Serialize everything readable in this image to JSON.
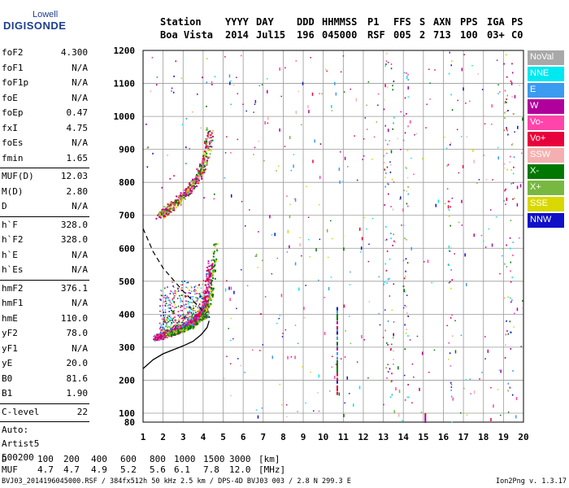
{
  "logo": {
    "line1": "Lowell",
    "line2": "DIGISONDE"
  },
  "header": {
    "labels": [
      "Station",
      "YYYY",
      "DAY",
      "DDD",
      "HHMMSS",
      "P1",
      "FFS",
      "S",
      "AXN",
      "PPS",
      "IGA",
      "PS"
    ],
    "values": [
      "Boa Vista",
      "2014",
      "Jul15",
      "196",
      "045000",
      "RSF",
      "005",
      "2",
      "713",
      "100",
      "03+",
      "C0"
    ]
  },
  "params_group1": [
    {
      "name": "foF2",
      "value": "4.300"
    },
    {
      "name": "foF1",
      "value": "N/A"
    },
    {
      "name": "foF1p",
      "value": "N/A"
    },
    {
      "name": "foE",
      "value": "N/A"
    },
    {
      "name": "foEp",
      "value": "0.47"
    },
    {
      "name": "fxI",
      "value": "4.75"
    },
    {
      "name": "foEs",
      "value": "N/A"
    },
    {
      "name": "fmin",
      "value": "1.65"
    }
  ],
  "params_group2": [
    {
      "name": "MUF(D)",
      "value": "12.03"
    },
    {
      "name": "M(D)",
      "value": "2.80"
    },
    {
      "name": "D",
      "value": "N/A"
    }
  ],
  "params_group3": [
    {
      "name": "h`F",
      "value": "328.0"
    },
    {
      "name": "h`F2",
      "value": "328.0"
    },
    {
      "name": "h`E",
      "value": "N/A"
    },
    {
      "name": "h`Es",
      "value": "N/A"
    }
  ],
  "params_group4": [
    {
      "name": "hmF2",
      "value": "376.1"
    },
    {
      "name": "hmF1",
      "value": "N/A"
    },
    {
      "name": "hmE",
      "value": "110.0"
    },
    {
      "name": "yF2",
      "value": "78.0"
    },
    {
      "name": "yF1",
      "value": "N/A"
    },
    {
      "name": "yE",
      "value": "20.0"
    },
    {
      "name": "B0",
      "value": "81.6"
    },
    {
      "name": "B1",
      "value": "1.90"
    }
  ],
  "clevel": {
    "name": "C-level",
    "value": "22"
  },
  "auto": {
    "line1": "Auto:",
    "line2": "Artist5",
    "line3": "500200"
  },
  "legend": [
    {
      "label": "NoVal",
      "color": "#a8a8a8"
    },
    {
      "label": "NNE",
      "color": "#00e8f0"
    },
    {
      "label": "E",
      "color": "#3a9bf0"
    },
    {
      "label": "W",
      "color": "#b0009c"
    },
    {
      "label": "Vo-",
      "color": "#ff44aa"
    },
    {
      "label": "Vo+",
      "color": "#e8003c"
    },
    {
      "label": "SSW",
      "color": "#f4b0b0"
    },
    {
      "label": "X-",
      "color": "#007800"
    },
    {
      "label": "X+",
      "color": "#78b840"
    },
    {
      "label": "SSE",
      "color": "#d8d800"
    },
    {
      "label": "NNW",
      "color": "#1010c8"
    }
  ],
  "footer": {
    "d_label": "D",
    "d_values": [
      "100",
      "200",
      "400",
      "600",
      "800",
      "1000",
      "1500",
      "3000"
    ],
    "d_unit": "[km]",
    "muf_label": "MUF",
    "muf_values": [
      "4.7",
      "4.7",
      "4.9",
      "5.2",
      "5.6",
      "6.1",
      "7.8",
      "12.0"
    ],
    "muf_unit": "[MHz]",
    "file_info": "BVJ03_2014196045000.RSF / 384fx512h 50 kHz 2.5 km / DPS-4D BVJ03 003 / 2.8 N 299.3 E",
    "version": "Ion2Png v. 1.3.17"
  },
  "chart_data": {
    "type": "scatter",
    "title": "",
    "xlabel": "",
    "ylabel": "",
    "xlim": [
      1,
      20
    ],
    "ylim": [
      80,
      1200
    ],
    "x_ticks": [
      1,
      2,
      3,
      4,
      5,
      6,
      7,
      8,
      9,
      10,
      11,
      12,
      13,
      14,
      15,
      16,
      17,
      18,
      19,
      20
    ],
    "y_ticks": [
      80,
      100,
      200,
      300,
      400,
      500,
      600,
      700,
      800,
      900,
      1000,
      1100,
      1200
    ],
    "grid": true,
    "traces": {
      "o_mode_F2": {
        "x": [
          1.6,
          2.0,
          2.5,
          3.0,
          3.5,
          3.9,
          4.15,
          4.3
        ],
        "y": [
          330,
          338,
          348,
          362,
          380,
          405,
          445,
          560
        ]
      },
      "multiple_hop": {
        "x": [
          1.8,
          2.2,
          2.7,
          3.2,
          3.7,
          4.1,
          4.3
        ],
        "y": [
          700,
          720,
          745,
          775,
          815,
          870,
          960
        ]
      },
      "x_mode_F2": {
        "x": [
          2.2,
          2.8,
          3.4,
          4.0,
          4.4,
          4.6
        ],
        "y": [
          340,
          350,
          365,
          395,
          460,
          620
        ]
      },
      "diffuse_cloud": {
        "x_range": [
          1.8,
          4.3
        ],
        "y_range": [
          330,
          520
        ]
      },
      "sporadic_vertical": {
        "x": 10.7,
        "y_range": [
          165,
          430
        ]
      },
      "noise_band_1": {
        "x": 15.1,
        "y_range": [
          80,
          100
        ]
      }
    },
    "profile_curve": {
      "x": [
        1.0,
        1.5,
        2.0,
        2.5,
        3.0,
        3.5,
        3.9,
        4.2,
        4.3
      ],
      "y": [
        235,
        262,
        280,
        292,
        304,
        318,
        338,
        360,
        380
      ]
    },
    "dashed_curve": {
      "x": [
        1.0,
        1.5,
        2.0,
        2.5,
        3.0,
        3.5,
        4.0
      ],
      "y": [
        660,
        590,
        540,
        505,
        470,
        440,
        410
      ]
    }
  }
}
